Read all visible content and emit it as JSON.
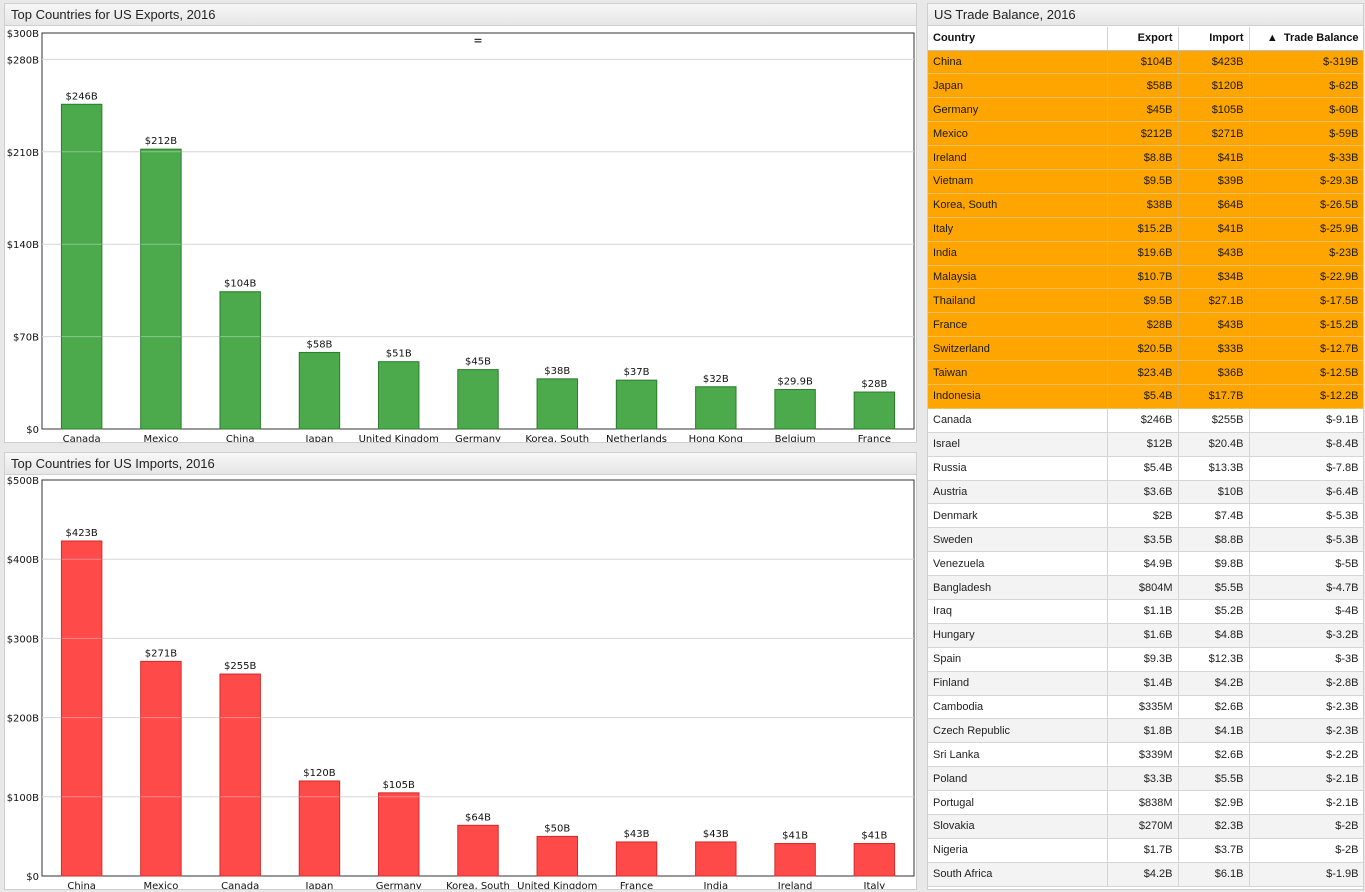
{
  "exports_chart": {
    "title": "Top Countries for US Exports, 2016",
    "handle": "="
  },
  "imports_chart": {
    "title": "Top Countries for US Imports, 2016"
  },
  "chart_data": [
    {
      "type": "bar",
      "title": "Top Countries for US Exports, 2016",
      "categories": [
        "Canada",
        "Mexico",
        "China",
        "Japan",
        "United Kingdom",
        "Germany",
        "Korea, South",
        "Netherlands",
        "Hong Kong",
        "Belgium",
        "France"
      ],
      "values": [
        246,
        212,
        104,
        58,
        51,
        45,
        38,
        37,
        32,
        29.9,
        28
      ],
      "value_labels": [
        "$246B",
        "$212B",
        "$104B",
        "$58B",
        "$51B",
        "$45B",
        "$38B",
        "$37B",
        "$32B",
        "$29.9B",
        "$28B"
      ],
      "yticks": [
        0,
        70,
        140,
        210,
        280,
        300
      ],
      "ytick_labels": [
        "$0",
        "$70B",
        "$140B",
        "$210B",
        "$280B",
        "$300B"
      ],
      "ylim": [
        0,
        300
      ],
      "grid": true,
      "color": "#4caa4c",
      "edge_color": "#2a7d2a"
    },
    {
      "type": "bar",
      "title": "Top Countries for US Imports, 2016",
      "categories": [
        "China",
        "Mexico",
        "Canada",
        "Japan",
        "Germany",
        "Korea, South",
        "United Kingdom",
        "France",
        "India",
        "Ireland",
        "Italy"
      ],
      "values": [
        423,
        271,
        255,
        120,
        105,
        64,
        50,
        43,
        43,
        41,
        41
      ],
      "value_labels": [
        "$423B",
        "$271B",
        "$255B",
        "$120B",
        "$105B",
        "$64B",
        "$50B",
        "$43B",
        "$43B",
        "$41B",
        "$41B"
      ],
      "yticks": [
        0,
        100,
        200,
        300,
        400,
        500
      ],
      "ytick_labels": [
        "$0",
        "$100B",
        "$200B",
        "$300B",
        "$400B",
        "$500B"
      ],
      "ylim": [
        0,
        500
      ],
      "grid": true,
      "color": "#ff4a4a",
      "edge_color": "#d22a2a"
    }
  ],
  "trade_table": {
    "title": "US Trade Balance, 2016",
    "columns": [
      "Country",
      "Export",
      "Import",
      "Trade Balance"
    ],
    "sort_indicator": "▲",
    "highlight_color": "#ffa500",
    "rows": [
      {
        "country": "China",
        "export": "$104B",
        "import": "$423B",
        "balance": "$-319B",
        "highlight": true
      },
      {
        "country": "Japan",
        "export": "$58B",
        "import": "$120B",
        "balance": "$-62B",
        "highlight": true
      },
      {
        "country": "Germany",
        "export": "$45B",
        "import": "$105B",
        "balance": "$-60B",
        "highlight": true
      },
      {
        "country": "Mexico",
        "export": "$212B",
        "import": "$271B",
        "balance": "$-59B",
        "highlight": true
      },
      {
        "country": "Ireland",
        "export": "$8.8B",
        "import": "$41B",
        "balance": "$-33B",
        "highlight": true
      },
      {
        "country": "Vietnam",
        "export": "$9.5B",
        "import": "$39B",
        "balance": "$-29.3B",
        "highlight": true
      },
      {
        "country": "Korea, South",
        "export": "$38B",
        "import": "$64B",
        "balance": "$-26.5B",
        "highlight": true
      },
      {
        "country": "Italy",
        "export": "$15.2B",
        "import": "$41B",
        "balance": "$-25.9B",
        "highlight": true
      },
      {
        "country": "India",
        "export": "$19.6B",
        "import": "$43B",
        "balance": "$-23B",
        "highlight": true
      },
      {
        "country": "Malaysia",
        "export": "$10.7B",
        "import": "$34B",
        "balance": "$-22.9B",
        "highlight": true
      },
      {
        "country": "Thailand",
        "export": "$9.5B",
        "import": "$27.1B",
        "balance": "$-17.5B",
        "highlight": true
      },
      {
        "country": "France",
        "export": "$28B",
        "import": "$43B",
        "balance": "$-15.2B",
        "highlight": true
      },
      {
        "country": "Switzerland",
        "export": "$20.5B",
        "import": "$33B",
        "balance": "$-12.7B",
        "highlight": true
      },
      {
        "country": "Taiwan",
        "export": "$23.4B",
        "import": "$36B",
        "balance": "$-12.5B",
        "highlight": true
      },
      {
        "country": "Indonesia",
        "export": "$5.4B",
        "import": "$17.7B",
        "balance": "$-12.2B",
        "highlight": true
      },
      {
        "country": "Canada",
        "export": "$246B",
        "import": "$255B",
        "balance": "$-9.1B",
        "highlight": false
      },
      {
        "country": "Israel",
        "export": "$12B",
        "import": "$20.4B",
        "balance": "$-8.4B",
        "highlight": false
      },
      {
        "country": "Russia",
        "export": "$5.4B",
        "import": "$13.3B",
        "balance": "$-7.8B",
        "highlight": false
      },
      {
        "country": "Austria",
        "export": "$3.6B",
        "import": "$10B",
        "balance": "$-6.4B",
        "highlight": false
      },
      {
        "country": "Denmark",
        "export": "$2B",
        "import": "$7.4B",
        "balance": "$-5.3B",
        "highlight": false
      },
      {
        "country": "Sweden",
        "export": "$3.5B",
        "import": "$8.8B",
        "balance": "$-5.3B",
        "highlight": false
      },
      {
        "country": "Venezuela",
        "export": "$4.9B",
        "import": "$9.8B",
        "balance": "$-5B",
        "highlight": false
      },
      {
        "country": "Bangladesh",
        "export": "$804M",
        "import": "$5.5B",
        "balance": "$-4.7B",
        "highlight": false
      },
      {
        "country": "Iraq",
        "export": "$1.1B",
        "import": "$5.2B",
        "balance": "$-4B",
        "highlight": false
      },
      {
        "country": "Hungary",
        "export": "$1.6B",
        "import": "$4.8B",
        "balance": "$-3.2B",
        "highlight": false
      },
      {
        "country": "Spain",
        "export": "$9.3B",
        "import": "$12.3B",
        "balance": "$-3B",
        "highlight": false
      },
      {
        "country": "Finland",
        "export": "$1.4B",
        "import": "$4.2B",
        "balance": "$-2.8B",
        "highlight": false
      },
      {
        "country": "Cambodia",
        "export": "$335M",
        "import": "$2.6B",
        "balance": "$-2.3B",
        "highlight": false
      },
      {
        "country": "Czech Republic",
        "export": "$1.8B",
        "import": "$4.1B",
        "balance": "$-2.3B",
        "highlight": false
      },
      {
        "country": "Sri Lanka",
        "export": "$339M",
        "import": "$2.6B",
        "balance": "$-2.2B",
        "highlight": false
      },
      {
        "country": "Poland",
        "export": "$3.3B",
        "import": "$5.5B",
        "balance": "$-2.1B",
        "highlight": false
      },
      {
        "country": "Portugal",
        "export": "$838M",
        "import": "$2.9B",
        "balance": "$-2.1B",
        "highlight": false
      },
      {
        "country": "Slovakia",
        "export": "$270M",
        "import": "$2.3B",
        "balance": "$-2B",
        "highlight": false
      },
      {
        "country": "Nigeria",
        "export": "$1.7B",
        "import": "$3.7B",
        "balance": "$-2B",
        "highlight": false
      },
      {
        "country": "South Africa",
        "export": "$4.2B",
        "import": "$6.1B",
        "balance": "$-1.9B",
        "highlight": false
      }
    ]
  }
}
